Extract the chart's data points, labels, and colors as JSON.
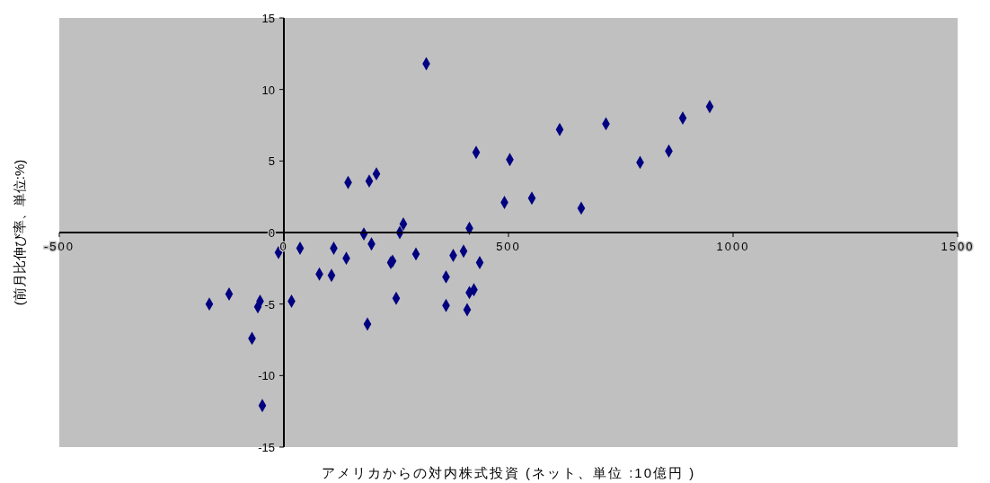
{
  "chart_data": {
    "type": "scatter",
    "xlabel": "アメリカからの対内株式投資 (ネット、単位 :10億円 )",
    "ylabel": "(前月比伸び率、単位:%)",
    "series": [
      {
        "color": "#000080",
        "x": [
          -166,
          -122,
          -53,
          -58,
          -71,
          -48,
          -12,
          17,
          36,
          79,
          106,
          111,
          139,
          143,
          178,
          186,
          190,
          195,
          206,
          238,
          242,
          250,
          258,
          266,
          294,
          361,
          361,
          377,
          400,
          413,
          413,
          423,
          408,
          436,
          428,
          491,
          503,
          552,
          317,
          614,
          662,
          717,
          793,
          857,
          888,
          948
        ],
        "values": [
          -5.0,
          -4.3,
          -4.8,
          -5.2,
          -7.4,
          -12.1,
          -1.4,
          -4.8,
          -1.1,
          -2.9,
          -3.0,
          -1.1,
          -1.8,
          3.5,
          -0.1,
          -6.4,
          3.6,
          -0.8,
          4.1,
          -2.1,
          -2.0,
          -4.6,
          0.0,
          0.6,
          -1.5,
          -3.1,
          -5.1,
          -1.6,
          -1.3,
          0.3,
          -4.2,
          -4.0,
          -5.4,
          -2.1,
          5.6,
          2.1,
          5.1,
          2.4,
          11.8,
          7.2,
          1.7,
          7.6,
          4.9,
          5.7,
          8.0,
          8.8
        ]
      }
    ],
    "marker": "diamond",
    "xlim": [
      -500,
      1500
    ],
    "xticks": [
      -500,
      0,
      500,
      1000,
      1500
    ],
    "ylim": [
      -15,
      15
    ],
    "yticks": [
      -15,
      -10,
      -5,
      0,
      5,
      10,
      15
    ],
    "grid": false
  }
}
